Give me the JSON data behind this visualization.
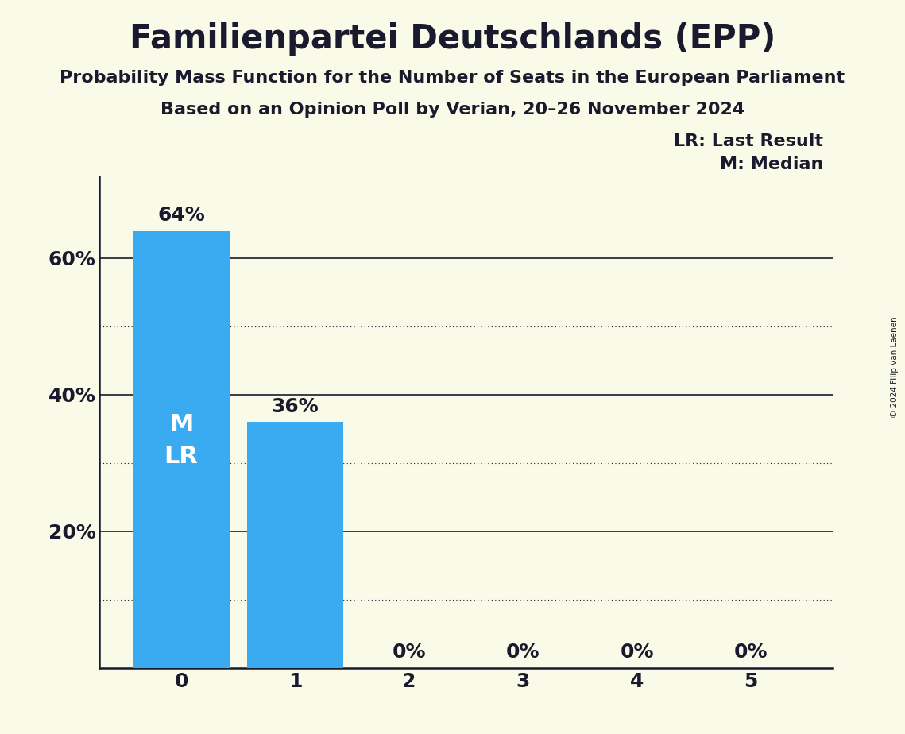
{
  "title": "Familienpartei Deutschlands (EPP)",
  "subtitle1": "Probability Mass Function for the Number of Seats in the European Parliament",
  "subtitle2": "Based on an Opinion Poll by Verian, 20–26 November 2024",
  "copyright": "© 2024 Filip van Laenen",
  "categories": [
    0,
    1,
    2,
    3,
    4,
    5
  ],
  "values": [
    0.64,
    0.36,
    0.0,
    0.0,
    0.0,
    0.0
  ],
  "bar_color": "#3aabf0",
  "background_color": "#fafae8",
  "bar_labels": [
    "64%",
    "36%",
    "0%",
    "0%",
    "0%",
    "0%"
  ],
  "yticks": [
    0.0,
    0.2,
    0.4,
    0.6
  ],
  "ytick_labels": [
    "",
    "20%",
    "40%",
    "60%"
  ],
  "ylim": [
    0,
    0.72
  ],
  "legend_lr": "LR: Last Result",
  "legend_m": "M: Median",
  "text_in_bar_0": "M\nLR",
  "hlines_solid": [
    0.2,
    0.4,
    0.6
  ],
  "hlines_dotted": [
    0.1,
    0.3,
    0.5
  ],
  "title_fontsize": 30,
  "subtitle_fontsize": 16,
  "tick_fontsize": 18,
  "bar_label_fontsize": 18,
  "legend_fontsize": 16,
  "bar_text_fontsize": 22
}
